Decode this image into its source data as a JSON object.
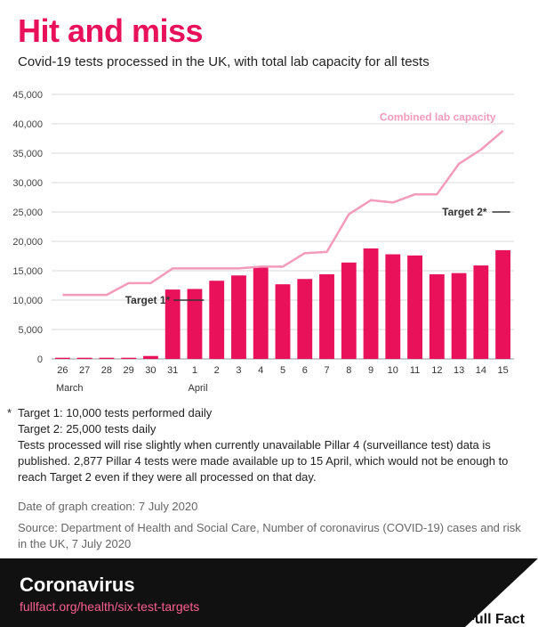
{
  "header": {
    "title": "Hit and miss",
    "subtitle": "Covid-19 tests processed in the UK, with total lab capacity for all tests"
  },
  "chart_data": {
    "type": "bar",
    "title": "Hit and miss",
    "categories": [
      "26",
      "27",
      "28",
      "29",
      "30",
      "31",
      "1",
      "2",
      "3",
      "4",
      "5",
      "6",
      "7",
      "8",
      "9",
      "10",
      "11",
      "12",
      "13",
      "14",
      "15"
    ],
    "month_labels": [
      {
        "index": 0,
        "label": "March"
      },
      {
        "index": 6,
        "label": "April"
      }
    ],
    "series": [
      {
        "name": "Tests processed",
        "type": "bar",
        "color": "#e8115a",
        "values": [
          200,
          200,
          200,
          200,
          500,
          11800,
          11900,
          13300,
          14200,
          15700,
          12700,
          13600,
          14400,
          16400,
          18800,
          17800,
          17600,
          14400,
          14600,
          15900,
          18500
        ]
      },
      {
        "name": "Combined lab capacity",
        "type": "line",
        "color": "#f39bbb",
        "values": [
          10900,
          10900,
          10900,
          12900,
          12900,
          15400,
          15400,
          15400,
          15400,
          15700,
          15700,
          18000,
          18200,
          24600,
          27000,
          26600,
          28000,
          28000,
          33200,
          35600,
          38800
        ]
      }
    ],
    "ylim": [
      0,
      45000
    ],
    "yticks": [
      0,
      5000,
      10000,
      15000,
      20000,
      25000,
      30000,
      35000,
      40000,
      45000
    ],
    "ytick_labels": [
      "0",
      "5,000",
      "10,000",
      "15,000",
      "20,000",
      "25,000",
      "30,000",
      "35,000",
      "40,000",
      "45,000"
    ],
    "annotations": [
      {
        "text": "Combined lab capacity",
        "type": "series-label"
      },
      {
        "text": "Target 1*",
        "value": 10000
      },
      {
        "text": "Target 2*",
        "value": 25000
      }
    ],
    "xlabel": "",
    "ylabel": "",
    "grid": "horizontal"
  },
  "notes": {
    "star": "*",
    "target1": "Target 1: 10,000 tests performed daily",
    "target2": "Target 2: 25,000 tests daily",
    "pillar4": "Tests processed will rise slightly when currently unavailable Pillar 4 (surveillance test) data is published. 2,877 Pillar 4 tests were made available up to 15 April, which would not be enough to reach Target 2 even if they were all processed on that day."
  },
  "meta": {
    "date": "Date of graph creation: 7 July 2020",
    "source": "Source: Department of Health and Social Care, Number of coronavirus (COVID-19) cases and risk in the UK, 7 July 2020"
  },
  "footer": {
    "topic": "Coronavirus",
    "link": "fullfact.org/health/six-test-targets",
    "logo_text": "Full Fact"
  },
  "colors": {
    "accent": "#e8115a",
    "line": "#f39bbb",
    "grid": "#d9d9d9",
    "footer_bg": "#111111",
    "link": "#ff5f92"
  }
}
